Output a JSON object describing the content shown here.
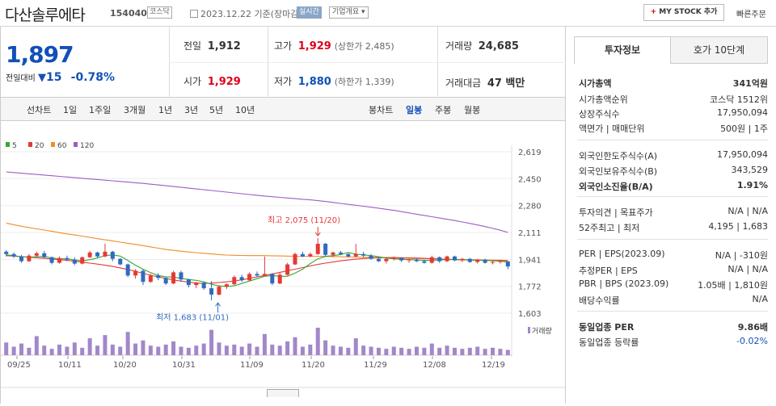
{
  "header": {
    "name": "다산솔루에타",
    "code": "154040",
    "market_badge": "코스닥",
    "date_text": "2023.12.22 기준(장마감)",
    "realtime_label": "실시간",
    "corp_label": "기업개요",
    "mystock_label": "MY STOCK 추가",
    "quick_order_label": "빠른주문"
  },
  "summary": {
    "price": "1,897",
    "compare_label": "전일대비",
    "change": "15",
    "change_pct": "-0.78%",
    "prev_close_label": "전일",
    "prev_close": "1,912",
    "high_label": "고가",
    "high": "1,929",
    "upper_limit": "(상한가 2,485)",
    "volume_label": "거래량",
    "volume": "24,685",
    "open_label": "시가",
    "open": "1,929",
    "low_label": "저가",
    "low": "1,880",
    "lower_limit": "(하한가 1,339)",
    "amount_label": "거래대금",
    "amount": "47 백만"
  },
  "chart_toolbar": {
    "line_label": "선차트",
    "periods": [
      "1일",
      "1주일",
      "3개월",
      "1년",
      "3년",
      "5년",
      "10년"
    ],
    "candle_label": "봉차트",
    "candle_types": [
      "일봉",
      "주봉",
      "월봉"
    ],
    "selected_candle": "일봉"
  },
  "chart_data": {
    "type": "candlestick",
    "legend": [
      {
        "name": "5",
        "color": "#33aa33"
      },
      {
        "name": "20",
        "color": "#e53935"
      },
      {
        "name": "60",
        "color": "#f28c28"
      },
      {
        "name": "120",
        "color": "#9c5cc8"
      }
    ],
    "y_ticks": [
      "2,619",
      "2,450",
      "2,280",
      "2,111",
      "1,941",
      "1,772",
      "1,603"
    ],
    "ylim": [
      1603,
      2619
    ],
    "x_ticks": [
      "09/25",
      "10/11",
      "10/20",
      "10/31",
      "11/09",
      "11/20",
      "11/29",
      "12/08",
      "12/19"
    ],
    "high_annotation": "최고 2,075 (11/20)",
    "low_annotation": "최저 1,683 (11/01)",
    "volume_label": "거래량",
    "candles": [
      [
        1990,
        2000,
        1960,
        1975
      ],
      [
        1975,
        1985,
        1950,
        1960
      ],
      [
        1960,
        1970,
        1920,
        1930
      ],
      [
        1930,
        1975,
        1925,
        1965
      ],
      [
        1965,
        1990,
        1955,
        1980
      ],
      [
        1980,
        1995,
        1950,
        1955
      ],
      [
        1955,
        1960,
        1910,
        1920
      ],
      [
        1920,
        1960,
        1915,
        1950
      ],
      [
        1950,
        1965,
        1930,
        1940
      ],
      [
        1940,
        1955,
        1905,
        1915
      ],
      [
        1915,
        1960,
        1910,
        1955
      ],
      [
        1955,
        1995,
        1950,
        1985
      ],
      [
        1985,
        1990,
        1950,
        1960
      ],
      [
        1960,
        2040,
        1955,
        1990
      ],
      [
        1990,
        1995,
        1930,
        1945
      ],
      [
        1945,
        1950,
        1905,
        1910
      ],
      [
        1910,
        1915,
        1830,
        1840
      ],
      [
        1840,
        1880,
        1820,
        1870
      ],
      [
        1870,
        1880,
        1780,
        1800
      ],
      [
        1800,
        1850,
        1795,
        1840
      ],
      [
        1840,
        1855,
        1810,
        1825
      ],
      [
        1825,
        1830,
        1780,
        1790
      ],
      [
        1790,
        1870,
        1785,
        1860
      ],
      [
        1860,
        1870,
        1800,
        1815
      ],
      [
        1815,
        1820,
        1765,
        1780
      ],
      [
        1780,
        1800,
        1760,
        1795
      ],
      [
        1795,
        1800,
        1750,
        1760
      ],
      [
        1760,
        1805,
        1683,
        1720
      ],
      [
        1720,
        1780,
        1715,
        1770
      ],
      [
        1770,
        1790,
        1755,
        1785
      ],
      [
        1785,
        1840,
        1780,
        1830
      ],
      [
        1830,
        1845,
        1800,
        1810
      ],
      [
        1810,
        1860,
        1805,
        1850
      ],
      [
        1850,
        1865,
        1830,
        1840
      ],
      [
        1840,
        1960,
        1835,
        1850
      ],
      [
        1850,
        1855,
        1780,
        1790
      ],
      [
        1790,
        1860,
        1785,
        1845
      ],
      [
        1845,
        1920,
        1840,
        1910
      ],
      [
        1910,
        1985,
        1905,
        1975
      ],
      [
        1975,
        1990,
        1955,
        1960
      ],
      [
        1960,
        1985,
        1955,
        1975
      ],
      [
        1975,
        2075,
        1970,
        2040
      ],
      [
        2040,
        2045,
        1960,
        1970
      ],
      [
        1970,
        1990,
        1955,
        1985
      ],
      [
        1985,
        1995,
        1970,
        1975
      ],
      [
        1975,
        1980,
        1955,
        1960
      ],
      [
        1960,
        2040,
        1955,
        1975
      ],
      [
        1975,
        1990,
        1955,
        1965
      ],
      [
        1965,
        1975,
        1940,
        1945
      ],
      [
        1945,
        1955,
        1925,
        1930
      ],
      [
        1930,
        1950,
        1915,
        1945
      ],
      [
        1945,
        1960,
        1935,
        1950
      ],
      [
        1950,
        1955,
        1925,
        1935
      ],
      [
        1935,
        1945,
        1920,
        1940
      ],
      [
        1940,
        1950,
        1925,
        1930
      ],
      [
        1930,
        1940,
        1915,
        1920
      ],
      [
        1920,
        1965,
        1915,
        1955
      ],
      [
        1955,
        1960,
        1920,
        1930
      ],
      [
        1930,
        1965,
        1925,
        1960
      ],
      [
        1960,
        1965,
        1930,
        1935
      ],
      [
        1935,
        1950,
        1925,
        1945
      ],
      [
        1945,
        1950,
        1920,
        1925
      ],
      [
        1925,
        1945,
        1915,
        1940
      ],
      [
        1940,
        1945,
        1915,
        1920
      ],
      [
        1920,
        1935,
        1910,
        1925
      ],
      [
        1925,
        1940,
        1915,
        1930
      ],
      [
        1929,
        1929,
        1880,
        1897
      ]
    ],
    "volumes": [
      60,
      40,
      55,
      35,
      90,
      45,
      30,
      50,
      40,
      60,
      35,
      80,
      45,
      95,
      50,
      40,
      110,
      55,
      70,
      45,
      40,
      50,
      65,
      40,
      35,
      45,
      55,
      120,
      60,
      45,
      50,
      40,
      55,
      40,
      100,
      50,
      45,
      65,
      85,
      40,
      50,
      130,
      70,
      45,
      40,
      35,
      80,
      45,
      40,
      35,
      30,
      40,
      35,
      30,
      40,
      35,
      55,
      35,
      45,
      35,
      30,
      35,
      40,
      30,
      35,
      30,
      25
    ],
    "ma5": [
      1970,
      1965,
      1958,
      1955,
      1958,
      1960,
      1950,
      1945,
      1945,
      1938,
      1932,
      1940,
      1950,
      1965,
      1970,
      1962,
      1935,
      1905,
      1880,
      1858,
      1840,
      1832,
      1830,
      1822,
      1815,
      1810,
      1800,
      1785,
      1775,
      1770,
      1775,
      1790,
      1805,
      1820,
      1835,
      1840,
      1835,
      1835,
      1855,
      1880,
      1915,
      1945,
      1960,
      1965,
      1972,
      1985,
      1975,
      1970,
      1965,
      1958,
      1950,
      1945,
      1942,
      1940,
      1938,
      1935,
      1935,
      1938,
      1940,
      1942,
      1940,
      1938,
      1936,
      1935,
      1933,
      1930,
      1925
    ],
    "ma20": [
      1965,
      1962,
      1958,
      1955,
      1952,
      1948,
      1944,
      1940,
      1935,
      1930,
      1924,
      1918,
      1912,
      1905,
      1897,
      1888,
      1878,
      1866,
      1854,
      1842,
      1832,
      1822,
      1812,
      1805,
      1798,
      1793,
      1790,
      1792,
      1796,
      1800,
      1806,
      1813,
      1822,
      1831,
      1840,
      1850,
      1860,
      1870,
      1880,
      1890,
      1900,
      1910,
      1918,
      1925,
      1932,
      1938,
      1943,
      1947,
      1950,
      1952,
      1953,
      1953,
      1952,
      1951,
      1950,
      1948,
      1946,
      1944,
      1942,
      1940,
      1939,
      1938,
      1937,
      1936,
      1935,
      1934,
      1933
    ],
    "ma60": [
      2170,
      2160,
      2150,
      2142,
      2134,
      2126,
      2118,
      2110,
      2102,
      2095,
      2088,
      2080,
      2072,
      2065,
      2058,
      2050,
      2043,
      2036,
      2028,
      2020,
      2012,
      2004,
      1998,
      1993,
      1988,
      1984,
      1980,
      1976,
      1972,
      1969,
      1967,
      1966,
      1965,
      1965,
      1965,
      1964,
      1963,
      1962,
      1961,
      1961,
      1961,
      1961,
      1960,
      1959,
      1958,
      1957,
      1956,
      1955,
      1954,
      1953,
      1951,
      1950,
      1949,
      1948,
      1947,
      1946,
      1945,
      1944,
      1943,
      1942,
      1941,
      1940,
      1939,
      1938,
      1937,
      1936,
      1935
    ],
    "ma120": [
      2492,
      2488,
      2484,
      2480,
      2476,
      2472,
      2468,
      2464,
      2460,
      2456,
      2452,
      2448,
      2444,
      2440,
      2436,
      2432,
      2428,
      2424,
      2420,
      2415,
      2410,
      2405,
      2400,
      2395,
      2390,
      2385,
      2380,
      2375,
      2370,
      2365,
      2360,
      2355,
      2350,
      2345,
      2340,
      2336,
      2332,
      2328,
      2324,
      2320,
      2316,
      2311,
      2306,
      2300,
      2294,
      2288,
      2282,
      2276,
      2270,
      2264,
      2257,
      2250,
      2242,
      2234,
      2226,
      2218,
      2210,
      2202,
      2194,
      2186,
      2177,
      2168,
      2158,
      2148,
      2137,
      2125,
      2111
    ]
  },
  "right_panel": {
    "tabs": [
      "투자정보",
      "호가 10단계"
    ],
    "rows": [
      {
        "k": "시가총액",
        "v": "341억원",
        "bold": true
      },
      {
        "k": "시가총액순위",
        "v": "코스닥 1512위"
      },
      {
        "k": "상장주식수",
        "v": "17,950,094"
      },
      {
        "k": "액면가 | 매매단위",
        "v": "500원 | 1주"
      },
      {
        "k": "외국인한도주식수(A)",
        "v": "17,950,094"
      },
      {
        "k": "외국인보유주식수(B)",
        "v": "343,529"
      },
      {
        "k": "외국인소진율(B/A)",
        "v": "1.91%",
        "bold": true
      },
      {
        "k": "투자의견 | 목표주가",
        "v": "N/A | N/A"
      },
      {
        "k": "52주최고 | 최저",
        "v": "4,195 | 1,683"
      },
      {
        "k": "PER | EPS(2023.09)",
        "v": "N/A | -310원"
      },
      {
        "k": "추정PER | EPS",
        "v": "N/A | N/A"
      },
      {
        "k": "PBR | BPS (2023.09)",
        "v": "1.05배 | 1,810원"
      },
      {
        "k": "배당수익률",
        "v": "N/A"
      },
      {
        "k": "동일업종 PER",
        "v": "9.86배",
        "bold": true
      },
      {
        "k": "동일업종 등락률",
        "v": "-0.02%",
        "blue": true
      }
    ]
  }
}
